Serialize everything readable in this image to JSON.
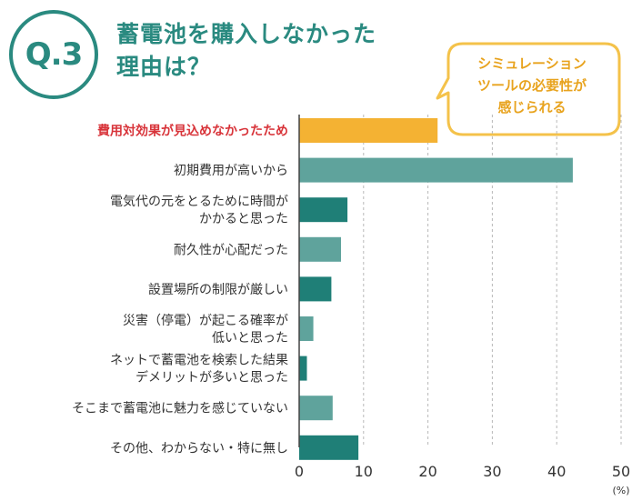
{
  "badge": "Q.3",
  "title": [
    "蓄電池を購入しなかった",
    "理由は？"
  ],
  "callout": [
    "シミュレーション",
    "ツールの必要性が",
    "感じられる"
  ],
  "colors": {
    "teal": "#2a8a80",
    "teal_dark": "#1f7f77",
    "teal_light": "#5fa39c",
    "highlight_bar": "#f4b233",
    "highlight_text": "#d8343a",
    "callout_border": "#f4c24a",
    "callout_text": "#e8a31e"
  },
  "chart_data": {
    "type": "bar",
    "orientation": "horizontal",
    "categories": [
      [
        "費用対効果が見込めなかったため"
      ],
      [
        "初期費用が高いから"
      ],
      [
        "電気代の元をとるために時間が",
        "かかると思った"
      ],
      [
        "耐久性が心配だった"
      ],
      [
        "設置場所の制限が厳しい"
      ],
      [
        "災害（停電）が起こる確率が",
        "低いと思った"
      ],
      [
        "ネットで蓄電池を検索した結果",
        "デメリットが多いと思った"
      ],
      [
        "そこまで蓄電池に魅力を感じていない"
      ],
      [
        "その他、わからない・特に無し"
      ]
    ],
    "values": [
      21.5,
      42.5,
      7.5,
      6.5,
      5.0,
      2.2,
      1.2,
      5.2,
      9.2
    ],
    "highlight_index": 0,
    "xlim": [
      0,
      50
    ],
    "x_ticks": [
      "0",
      "10",
      "20",
      "30",
      "40",
      "50"
    ],
    "unit": "(%)",
    "grid": true
  }
}
